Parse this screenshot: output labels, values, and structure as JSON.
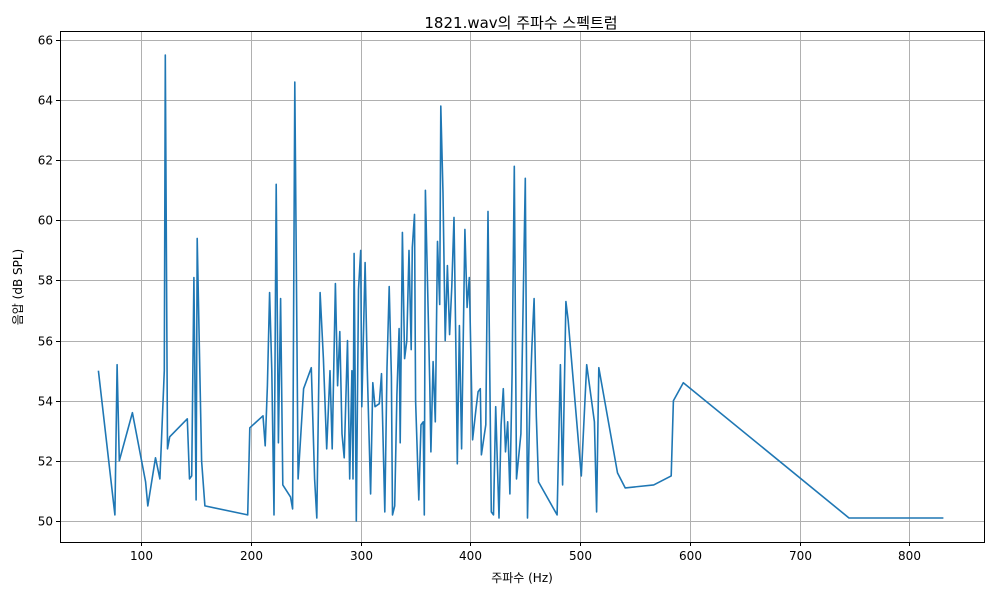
{
  "chart_data": {
    "type": "line",
    "title": "1821.wav의 주파수 스펙트럼",
    "xlabel": "주파수 (Hz)",
    "ylabel": "음압 (dB SPL)",
    "xlim": [
      26,
      868
    ],
    "ylim": [
      49.3,
      66.3
    ],
    "xticks": [
      100,
      200,
      300,
      400,
      500,
      600,
      700,
      800
    ],
    "yticks": [
      50,
      52,
      54,
      56,
      58,
      60,
      62,
      64,
      66
    ],
    "grid": true,
    "line_color": "#1f77b4",
    "series": [
      {
        "values": [
          [
            61,
            55.0
          ],
          [
            76,
            50.2
          ],
          [
            78,
            55.2
          ],
          [
            80,
            52.0
          ],
          [
            92,
            53.6
          ],
          [
            104,
            51.3
          ],
          [
            106,
            50.5
          ],
          [
            113,
            52.1
          ],
          [
            117,
            51.4
          ],
          [
            121,
            55.0
          ],
          [
            122,
            65.5
          ],
          [
            124,
            52.4
          ],
          [
            126,
            52.8
          ],
          [
            142,
            53.4
          ],
          [
            144,
            51.4
          ],
          [
            146,
            51.5
          ],
          [
            148,
            58.1
          ],
          [
            150,
            50.7
          ],
          [
            151,
            59.4
          ],
          [
            155,
            52.0
          ],
          [
            158,
            50.5
          ],
          [
            197,
            50.2
          ],
          [
            199,
            53.1
          ],
          [
            211,
            53.5
          ],
          [
            213,
            52.5
          ],
          [
            215,
            54.5
          ],
          [
            217,
            57.6
          ],
          [
            219,
            55.0
          ],
          [
            221,
            50.2
          ],
          [
            223,
            61.2
          ],
          [
            225,
            52.6
          ],
          [
            227,
            57.4
          ],
          [
            229,
            51.2
          ],
          [
            236,
            50.8
          ],
          [
            238,
            50.4
          ],
          [
            240,
            64.6
          ],
          [
            243,
            51.4
          ],
          [
            248,
            54.4
          ],
          [
            255,
            55.1
          ],
          [
            258,
            51.4
          ],
          [
            260,
            50.1
          ],
          [
            263,
            57.6
          ],
          [
            266,
            55.4
          ],
          [
            269,
            52.4
          ],
          [
            272,
            55.0
          ],
          [
            274,
            52.4
          ],
          [
            277,
            57.9
          ],
          [
            279,
            54.5
          ],
          [
            281,
            56.3
          ],
          [
            283,
            52.9
          ],
          [
            285,
            52.1
          ],
          [
            288,
            56.0
          ],
          [
            290,
            51.4
          ],
          [
            292,
            55.0
          ],
          [
            293,
            51.4
          ],
          [
            294,
            58.9
          ],
          [
            296,
            50.0
          ],
          [
            298,
            57.7
          ],
          [
            300,
            59.0
          ],
          [
            301,
            53.8
          ],
          [
            304,
            58.6
          ],
          [
            306,
            55.0
          ],
          [
            309,
            50.9
          ],
          [
            311,
            54.6
          ],
          [
            313,
            53.8
          ],
          [
            317,
            53.9
          ],
          [
            319,
            54.9
          ],
          [
            322,
            50.3
          ],
          [
            324,
            55.1
          ],
          [
            326,
            57.8
          ],
          [
            328,
            54.8
          ],
          [
            329,
            50.2
          ],
          [
            331,
            50.5
          ],
          [
            333,
            54.2
          ],
          [
            335,
            56.4
          ],
          [
            336,
            52.6
          ],
          [
            338,
            59.6
          ],
          [
            340,
            55.4
          ],
          [
            342,
            56.0
          ],
          [
            344,
            59.0
          ],
          [
            346,
            55.7
          ],
          [
            347,
            59.1
          ],
          [
            349,
            60.2
          ],
          [
            350,
            54.0
          ],
          [
            353,
            50.7
          ],
          [
            355,
            53.2
          ],
          [
            357,
            53.3
          ],
          [
            358,
            50.2
          ],
          [
            359,
            61.0
          ],
          [
            361,
            57.8
          ],
          [
            363,
            54.5
          ],
          [
            364,
            52.3
          ],
          [
            366,
            55.3
          ],
          [
            368,
            53.3
          ],
          [
            370,
            59.3
          ],
          [
            372,
            57.2
          ],
          [
            373,
            63.8
          ],
          [
            375,
            60.9
          ],
          [
            377,
            56.0
          ],
          [
            379,
            58.5
          ],
          [
            381,
            56.2
          ],
          [
            383,
            57.8
          ],
          [
            385,
            60.1
          ],
          [
            387,
            55.0
          ],
          [
            388,
            51.9
          ],
          [
            390,
            56.5
          ],
          [
            392,
            52.4
          ],
          [
            395,
            59.7
          ],
          [
            397,
            57.1
          ],
          [
            399,
            58.1
          ],
          [
            402,
            52.7
          ],
          [
            405,
            53.7
          ],
          [
            407,
            54.3
          ],
          [
            409,
            54.4
          ],
          [
            410,
            52.2
          ],
          [
            414,
            53.2
          ],
          [
            416,
            60.3
          ],
          [
            419,
            50.3
          ],
          [
            421,
            50.2
          ],
          [
            423,
            53.8
          ],
          [
            426,
            50.1
          ],
          [
            428,
            53.2
          ],
          [
            430,
            54.4
          ],
          [
            432,
            52.3
          ],
          [
            434,
            53.3
          ],
          [
            436,
            50.9
          ],
          [
            438,
            54.9
          ],
          [
            440,
            61.8
          ],
          [
            442,
            51.4
          ],
          [
            446,
            52.9
          ],
          [
            450,
            61.4
          ],
          [
            452,
            50.1
          ],
          [
            454,
            53.7
          ],
          [
            456,
            55.8
          ],
          [
            458,
            57.4
          ],
          [
            460,
            53.5
          ],
          [
            462,
            51.3
          ],
          [
            479,
            50.2
          ],
          [
            482,
            55.2
          ],
          [
            484,
            51.2
          ],
          [
            487,
            57.3
          ],
          [
            489,
            56.7
          ],
          [
            501,
            51.5
          ],
          [
            506,
            55.2
          ],
          [
            513,
            53.3
          ],
          [
            515,
            50.3
          ],
          [
            517,
            55.1
          ],
          [
            534,
            51.6
          ],
          [
            541,
            51.1
          ],
          [
            567,
            51.2
          ],
          [
            583,
            51.5
          ],
          [
            585,
            54.0
          ],
          [
            594,
            54.6
          ],
          [
            745,
            50.1
          ],
          [
            831,
            50.1
          ]
        ]
      }
    ]
  }
}
